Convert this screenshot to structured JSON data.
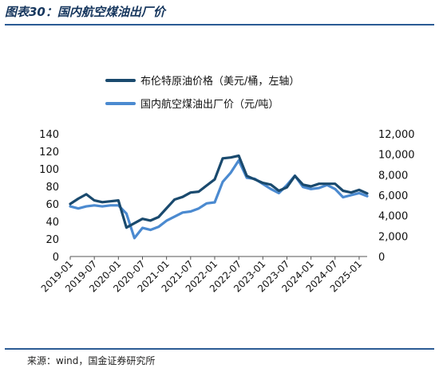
{
  "figure": {
    "title": "图表30：国内航空煤油出厂价",
    "source": "来源：wind，国金证券研究所"
  },
  "chart_data": {
    "type": "line",
    "x_labels": [
      "2019-01",
      "2019-07",
      "2020-01",
      "2020-07",
      "2021-01",
      "2021-07",
      "2022-01",
      "2022-07",
      "2023-01",
      "2023-07",
      "2024-01",
      "2024-07",
      "2025-01"
    ],
    "x": [
      "2019-01",
      "2019-03",
      "2019-05",
      "2019-07",
      "2019-09",
      "2019-11",
      "2020-01",
      "2020-03",
      "2020-05",
      "2020-07",
      "2020-09",
      "2020-11",
      "2021-01",
      "2021-03",
      "2021-05",
      "2021-07",
      "2021-09",
      "2021-11",
      "2022-01",
      "2022-03",
      "2022-05",
      "2022-07",
      "2022-09",
      "2022-11",
      "2023-01",
      "2023-03",
      "2023-05",
      "2023-07",
      "2023-09",
      "2023-11",
      "2024-01",
      "2024-03",
      "2024-05",
      "2024-07",
      "2024-09",
      "2024-11",
      "2025-01",
      "2025-03"
    ],
    "series": [
      {
        "name": "布伦特原油价格（美元/桶，左轴）",
        "axis": "left",
        "color": "#1a4a6e",
        "values": [
          60,
          66,
          71,
          64,
          62,
          63,
          64,
          33,
          38,
          43,
          41,
          45,
          55,
          65,
          68,
          73,
          74,
          81,
          88,
          112,
          113,
          115,
          92,
          88,
          84,
          82,
          75,
          79,
          92,
          82,
          80,
          83,
          83,
          83,
          75,
          73,
          76,
          72
        ]
      },
      {
        "name": "国内航空煤油出厂价（元/吨）",
        "axis": "right",
        "color": "#4b8ad0",
        "values": [
          4900,
          4700,
          4900,
          5000,
          4900,
          5000,
          5000,
          4200,
          1800,
          2800,
          2600,
          2900,
          3500,
          3900,
          4300,
          4400,
          4700,
          5200,
          5300,
          7300,
          8200,
          9400,
          7700,
          7600,
          7100,
          6600,
          6200,
          7000,
          7900,
          6800,
          6600,
          6700,
          7000,
          6600,
          5800,
          6000,
          6200,
          5900
        ]
      }
    ],
    "y_left": {
      "ticks": [
        0,
        20,
        40,
        60,
        80,
        100,
        120,
        140
      ],
      "range": [
        0,
        140
      ]
    },
    "y_right": {
      "ticks": [
        "0",
        "2,000",
        "4,000",
        "6,000",
        "8,000",
        "10,000",
        "12,000"
      ],
      "range": [
        0,
        12000
      ]
    },
    "legend_position": "top-right",
    "grid": false
  }
}
